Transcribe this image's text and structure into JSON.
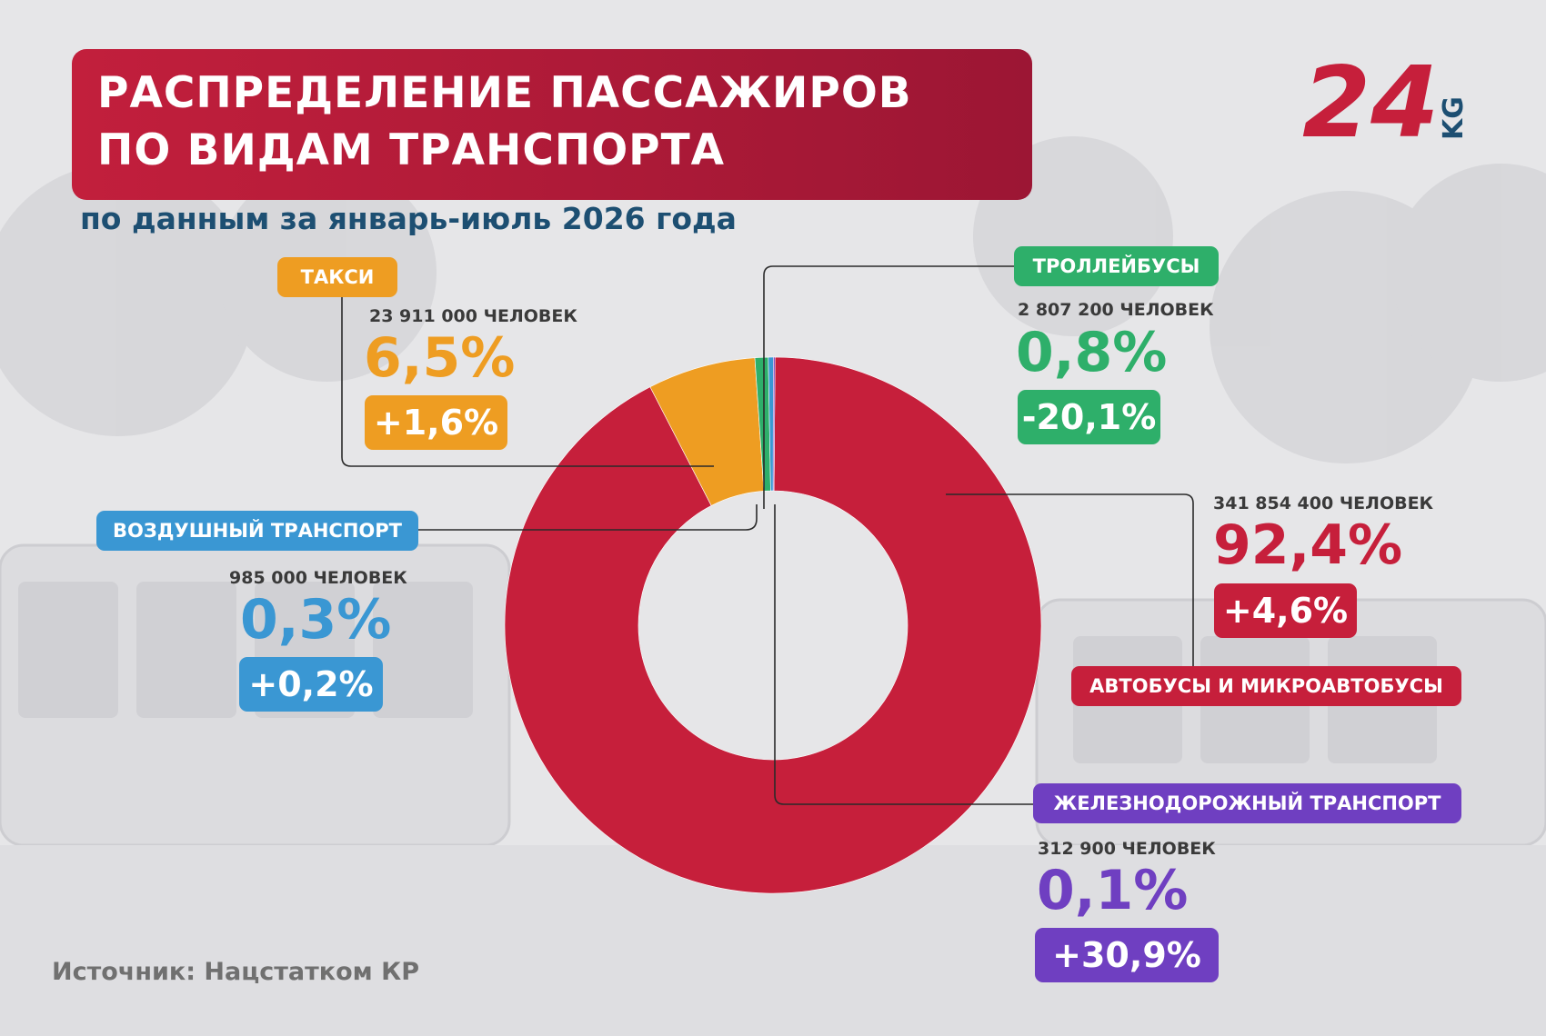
{
  "title_line1": "РАСПРЕДЕЛЕНИЕ ПАССАЖИРОВ",
  "title_line2": "ПО ВИДАМ ТРАНСПОРТА",
  "subtitle": "по данным за январь-июль 2026 года",
  "source": "Источник: Нацстатком КР",
  "logo": {
    "number": "24",
    "suffix": "KG"
  },
  "colors": {
    "bus": "#c61f3b",
    "taxi": "#ee9d22",
    "trolleybus": "#2eaf6a",
    "air": "#3a97d3",
    "rail": "#6f3fc1",
    "title_bg": "#b01c39",
    "subtitle": "#1d4f72"
  },
  "labels": {
    "taxi": {
      "name": "ТАКСИ",
      "count": "23 911 000 человек",
      "share": "6,5%",
      "change": "+1,6%"
    },
    "trolleybus": {
      "name": "ТРОЛЛЕЙБУСЫ",
      "count": "2 807 200 человек",
      "share": "0,8%",
      "change": "-20,1%"
    },
    "air": {
      "name": "ВОЗДУШНЫЙ ТРАНСПОРТ",
      "count": "985 000 человек",
      "share": "0,3%",
      "change": "+0,2%"
    },
    "bus": {
      "name": "АВТОБУСЫ И МИКРОАВТОБУСЫ",
      "count": "341 854 400 человек",
      "share": "92,4%",
      "change": "+4,6%"
    },
    "rail": {
      "name": "ЖЕЛЕЗНОДОРОЖНЫЙ ТРАНСПОРТ",
      "count": "312 900 человек",
      "share": "0,1%",
      "change": "+30,9%"
    }
  },
  "chart_data": {
    "type": "pie",
    "variant": "donut",
    "unit": "%",
    "slices": [
      {
        "key": "bus",
        "label": "АВТОБУСЫ И МИКРОАВТОБУСЫ",
        "value": 92.4,
        "passengers": 341854400,
        "change_pct": 4.6,
        "color": "#c61f3b"
      },
      {
        "key": "taxi",
        "label": "ТАКСИ",
        "value": 6.5,
        "passengers": 23911000,
        "change_pct": 1.6,
        "color": "#ee9d22"
      },
      {
        "key": "trolleybus",
        "label": "ТРОЛЛЕЙБУСЫ",
        "value": 0.8,
        "passengers": 2807200,
        "change_pct": -20.1,
        "color": "#2eaf6a"
      },
      {
        "key": "air",
        "label": "ВОЗДУШНЫЙ ТРАНСПОРТ",
        "value": 0.3,
        "passengers": 985000,
        "change_pct": 0.2,
        "color": "#3a97d3"
      },
      {
        "key": "rail",
        "label": "ЖЕЛЕЗНОДОРОЖНЫЙ ТРАНСПОРТ",
        "value": 0.1,
        "passengers": 312900,
        "change_pct": 30.9,
        "color": "#6f3fc1"
      }
    ]
  }
}
